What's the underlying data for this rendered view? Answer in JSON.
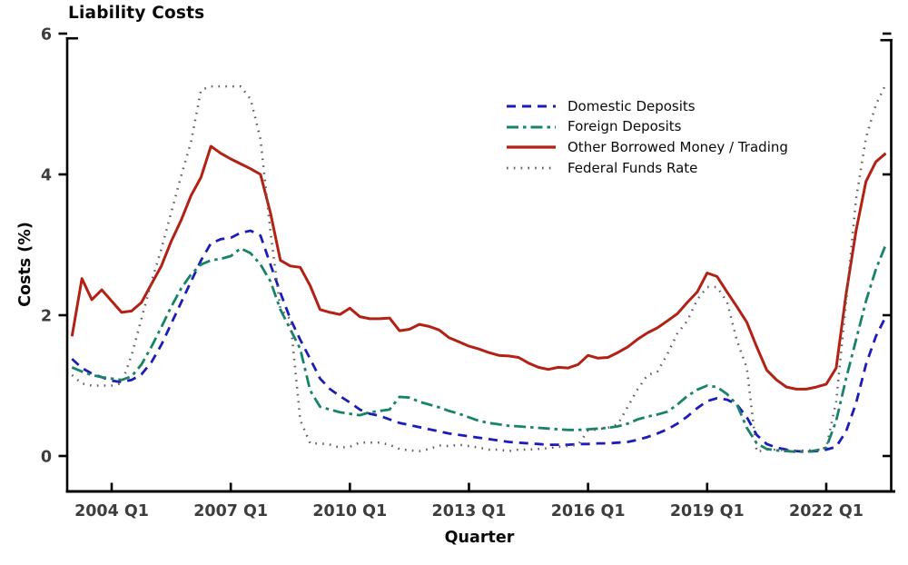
{
  "chart": {
    "title": "Liability Costs",
    "xlabel": "Quarter",
    "ylabel": "Costs (%)"
  },
  "chart_data": {
    "type": "line",
    "title": "Liability Costs",
    "xlabel": "Quarter",
    "ylabel": "Costs (%)",
    "ylim": [
      0,
      6
    ],
    "yticks": [
      0,
      2,
      4,
      6
    ],
    "x_start": "2003 Q1",
    "x_end": "2023 Q3",
    "x_frequency": "quarterly",
    "xtick_labels": [
      "2004 Q1",
      "2007 Q1",
      "2010 Q1",
      "2013 Q1",
      "2016 Q1",
      "2019 Q1",
      "2022 Q1"
    ],
    "xtick_indices": [
      4,
      16,
      28,
      40,
      52,
      64,
      76
    ],
    "grid": false,
    "legend_position": "upper-right-inside",
    "axis_color": "#000000",
    "tick_label_color": "#3d3d3d",
    "series": [
      {
        "name": "Domestic Deposits",
        "color": "#1c1cb8",
        "style": "dashed",
        "values": [
          1.38,
          1.25,
          1.17,
          1.12,
          1.07,
          1.05,
          1.08,
          1.16,
          1.33,
          1.58,
          1.88,
          2.18,
          2.48,
          2.78,
          3.02,
          3.08,
          3.1,
          3.17,
          3.2,
          3.13,
          2.72,
          2.32,
          1.95,
          1.65,
          1.38,
          1.1,
          0.95,
          0.85,
          0.76,
          0.66,
          0.6,
          0.57,
          0.52,
          0.47,
          0.44,
          0.41,
          0.38,
          0.35,
          0.32,
          0.3,
          0.28,
          0.26,
          0.24,
          0.22,
          0.2,
          0.19,
          0.18,
          0.17,
          0.16,
          0.16,
          0.16,
          0.17,
          0.17,
          0.18,
          0.18,
          0.19,
          0.2,
          0.23,
          0.27,
          0.32,
          0.38,
          0.46,
          0.56,
          0.68,
          0.78,
          0.82,
          0.8,
          0.73,
          0.55,
          0.3,
          0.17,
          0.12,
          0.09,
          0.07,
          0.06,
          0.07,
          0.09,
          0.13,
          0.35,
          0.75,
          1.3,
          1.7,
          1.98
        ]
      },
      {
        "name": "Foreign Deposits",
        "color": "#17836a",
        "style": "dashdot",
        "values": [
          1.26,
          1.2,
          1.15,
          1.12,
          1.1,
          1.08,
          1.13,
          1.3,
          1.55,
          1.83,
          2.12,
          2.38,
          2.58,
          2.72,
          2.78,
          2.8,
          2.84,
          2.95,
          2.88,
          2.72,
          2.48,
          2.08,
          1.8,
          1.52,
          0.93,
          0.7,
          0.66,
          0.62,
          0.6,
          0.58,
          0.62,
          0.64,
          0.66,
          0.84,
          0.83,
          0.77,
          0.73,
          0.69,
          0.64,
          0.6,
          0.55,
          0.5,
          0.47,
          0.45,
          0.43,
          0.42,
          0.41,
          0.4,
          0.39,
          0.38,
          0.37,
          0.37,
          0.38,
          0.39,
          0.4,
          0.42,
          0.46,
          0.52,
          0.56,
          0.59,
          0.63,
          0.73,
          0.85,
          0.94,
          1.0,
          0.98,
          0.88,
          0.73,
          0.4,
          0.18,
          0.1,
          0.08,
          0.07,
          0.06,
          0.06,
          0.08,
          0.12,
          0.5,
          1.1,
          1.65,
          2.2,
          2.65,
          3.0
        ]
      },
      {
        "name": "Other Borrowed Money / Trading",
        "color": "#b22114",
        "style": "solid",
        "values": [
          1.7,
          2.52,
          2.22,
          2.36,
          2.2,
          2.04,
          2.06,
          2.18,
          2.44,
          2.7,
          3.05,
          3.35,
          3.7,
          3.96,
          4.4,
          4.3,
          4.22,
          4.15,
          4.08,
          4.0,
          3.45,
          2.78,
          2.7,
          2.68,
          2.42,
          2.08,
          2.04,
          2.01,
          2.1,
          1.98,
          1.95,
          1.95,
          1.96,
          1.78,
          1.8,
          1.87,
          1.84,
          1.79,
          1.68,
          1.62,
          1.56,
          1.52,
          1.47,
          1.43,
          1.42,
          1.4,
          1.32,
          1.26,
          1.23,
          1.26,
          1.25,
          1.3,
          1.43,
          1.39,
          1.4,
          1.47,
          1.55,
          1.66,
          1.75,
          1.82,
          1.92,
          2.02,
          2.18,
          2.33,
          2.6,
          2.55,
          2.33,
          2.12,
          1.9,
          1.55,
          1.22,
          1.08,
          0.98,
          0.95,
          0.95,
          0.98,
          1.02,
          1.25,
          2.3,
          3.2,
          3.9,
          4.18,
          4.3
        ]
      },
      {
        "name": "Federal Funds Rate",
        "color": "#5e5e5e",
        "style": "dotted",
        "values": [
          1.15,
          1.03,
          1.0,
          1.0,
          1.0,
          1.03,
          1.43,
          1.95,
          2.47,
          2.94,
          3.46,
          3.98,
          4.46,
          5.2,
          5.25,
          5.25,
          5.25,
          5.25,
          5.07,
          4.5,
          3.18,
          2.09,
          1.94,
          0.51,
          0.18,
          0.18,
          0.16,
          0.12,
          0.13,
          0.19,
          0.19,
          0.19,
          0.16,
          0.1,
          0.08,
          0.07,
          0.1,
          0.15,
          0.14,
          0.16,
          0.14,
          0.12,
          0.09,
          0.09,
          0.07,
          0.09,
          0.09,
          0.1,
          0.11,
          0.13,
          0.14,
          0.16,
          0.36,
          0.38,
          0.4,
          0.45,
          0.7,
          0.95,
          1.15,
          1.2,
          1.45,
          1.74,
          1.92,
          2.22,
          2.4,
          2.4,
          2.19,
          1.64,
          1.25,
          0.06,
          0.09,
          0.09,
          0.08,
          0.07,
          0.08,
          0.08,
          0.12,
          0.77,
          2.19,
          3.65,
          4.52,
          4.99,
          5.28
        ]
      }
    ]
  }
}
